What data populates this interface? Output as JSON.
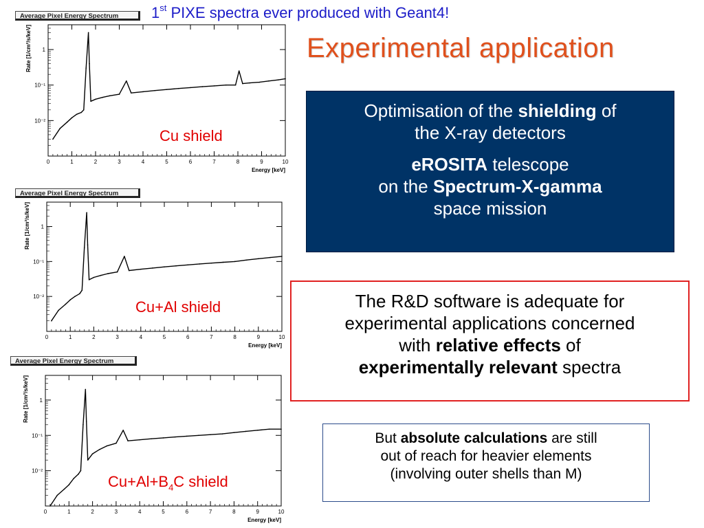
{
  "header": {
    "caption_prefix": "1",
    "caption_sup": "st",
    "caption_rest": " PIXE spectra ever produced with Geant4!",
    "title": "Experimental application"
  },
  "colors": {
    "title": "#e0501c",
    "caption": "#1c1cc8",
    "shield_label": "#e00000",
    "blue_box": "#003366",
    "red_border": "#e02020",
    "spectrum_line": "#000000"
  },
  "blue_box": {
    "l1_pre": "Optimisation of the ",
    "l1_bold": "shielding",
    "l1_post": " of",
    "l2": "the X-ray detectors",
    "l3_bold": "eROSITA",
    "l3_post": " telescope",
    "l4_pre": "on the ",
    "l4_bold": "Spectrum-X-gamma",
    "l5": "space mission"
  },
  "red_box": {
    "l1": "The R&D software is adequate for",
    "l2": "experimental applications concerned",
    "l3_pre": "with ",
    "l3_bold": "relative effects",
    "l3_post": " of",
    "l4_bold": "experimentally relevant",
    "l4_post": " spectra"
  },
  "small_box": {
    "l1_pre": "But ",
    "l1_bold": "absolute calculations",
    "l1_post": " are still",
    "l2": "out of reach for heavier elements",
    "l3": "(involving outer shells than M)"
  },
  "chart_data": [
    {
      "type": "line",
      "title": "Average Pixel Energy Spectrum",
      "label": "Cu shield",
      "xlabel": "Energy [keV]",
      "ylabel": "Rate [1/cm²/s/keV]",
      "xlim": [
        0,
        10
      ],
      "ylim": [
        0.001,
        5
      ],
      "yscale": "log",
      "x_ticks": [
        "0",
        "1",
        "2",
        "3",
        "4",
        "5",
        "6",
        "7",
        "8",
        "9",
        "10"
      ],
      "y_ticks": [
        {
          "v": 0.01,
          "label": "10⁻²"
        },
        {
          "v": 0.1,
          "label": "10⁻¹"
        },
        {
          "v": 1,
          "label": "1"
        }
      ],
      "grid": false,
      "series": [
        {
          "x": [
            0.2,
            0.5,
            0.8,
            1.0,
            1.2,
            1.4,
            1.5,
            1.6,
            1.7,
            1.74,
            1.8,
            2.0,
            2.3,
            2.6,
            3.0,
            3.3,
            3.5,
            4.0,
            4.5,
            5.0,
            5.5,
            6.0,
            6.5,
            7.0,
            7.5,
            7.9,
            8.05,
            8.2,
            8.5,
            8.9,
            9.3,
            9.7,
            10.0
          ],
          "y": [
            0.003,
            0.006,
            0.009,
            0.012,
            0.015,
            0.017,
            0.02,
            0.3,
            3.0,
            0.4,
            0.035,
            0.04,
            0.045,
            0.05,
            0.055,
            0.13,
            0.06,
            0.065,
            0.07,
            0.075,
            0.08,
            0.085,
            0.09,
            0.095,
            0.1,
            0.1,
            0.25,
            0.11,
            0.115,
            0.12,
            0.13,
            0.14,
            0.15
          ]
        }
      ]
    },
    {
      "type": "line",
      "title": "Average Pixel Energy Spectrum",
      "label": "Cu+Al shield",
      "xlabel": "Energy [keV]",
      "ylabel": "Rate [1/cm²/s/keV]",
      "xlim": [
        0,
        10
      ],
      "ylim": [
        0.001,
        5
      ],
      "yscale": "log",
      "x_ticks": [
        "0",
        "1",
        "2",
        "3",
        "4",
        "5",
        "6",
        "7",
        "8",
        "9",
        "10"
      ],
      "y_ticks": [
        {
          "v": 0.01,
          "label": "10⁻²"
        },
        {
          "v": 0.1,
          "label": "10⁻¹"
        },
        {
          "v": 1,
          "label": "1"
        }
      ],
      "grid": false,
      "series": [
        {
          "x": [
            0.2,
            0.5,
            0.8,
            1.0,
            1.2,
            1.4,
            1.5,
            1.6,
            1.7,
            1.74,
            1.8,
            2.0,
            2.3,
            2.6,
            3.0,
            3.3,
            3.5,
            4.0,
            4.5,
            5.0,
            5.5,
            6.0,
            6.5,
            7.0,
            7.5,
            8.0,
            8.5,
            9.0,
            9.5,
            10.0
          ],
          "y": [
            0.002,
            0.004,
            0.006,
            0.008,
            0.01,
            0.012,
            0.015,
            0.25,
            2.5,
            0.3,
            0.03,
            0.035,
            0.04,
            0.045,
            0.05,
            0.14,
            0.055,
            0.06,
            0.065,
            0.07,
            0.075,
            0.08,
            0.085,
            0.09,
            0.095,
            0.1,
            0.11,
            0.12,
            0.13,
            0.14
          ]
        }
      ]
    },
    {
      "type": "line",
      "title": "Average Pixel Energy Spectrum",
      "label": "Cu+Al+B4C shield",
      "xlabel": "Energy [keV]",
      "ylabel": "Rate [1/cm²/s/keV]",
      "xlim": [
        0,
        10
      ],
      "ylim": [
        0.001,
        5
      ],
      "yscale": "log",
      "x_ticks": [
        "0",
        "1",
        "2",
        "3",
        "4",
        "5",
        "6",
        "7",
        "8",
        "9",
        "10"
      ],
      "y_ticks": [
        {
          "v": 0.01,
          "label": "10⁻²"
        },
        {
          "v": 0.1,
          "label": "10⁻¹"
        },
        {
          "v": 1,
          "label": "1"
        }
      ],
      "grid": false,
      "series": [
        {
          "x": [
            0.2,
            0.5,
            0.8,
            1.0,
            1.2,
            1.4,
            1.5,
            1.6,
            1.7,
            1.74,
            1.8,
            2.0,
            2.3,
            2.6,
            3.0,
            3.3,
            3.5,
            4.0,
            4.5,
            5.0,
            5.5,
            6.0,
            6.5,
            7.0,
            7.5,
            8.0,
            8.5,
            9.0,
            9.5,
            10.0
          ],
          "y": [
            0.001,
            0.002,
            0.003,
            0.004,
            0.006,
            0.008,
            0.01,
            0.2,
            2.0,
            0.25,
            0.02,
            0.03,
            0.04,
            0.05,
            0.06,
            0.14,
            0.07,
            0.075,
            0.08,
            0.085,
            0.09,
            0.095,
            0.1,
            0.105,
            0.11,
            0.12,
            0.13,
            0.14,
            0.15,
            0.15
          ]
        }
      ]
    }
  ]
}
